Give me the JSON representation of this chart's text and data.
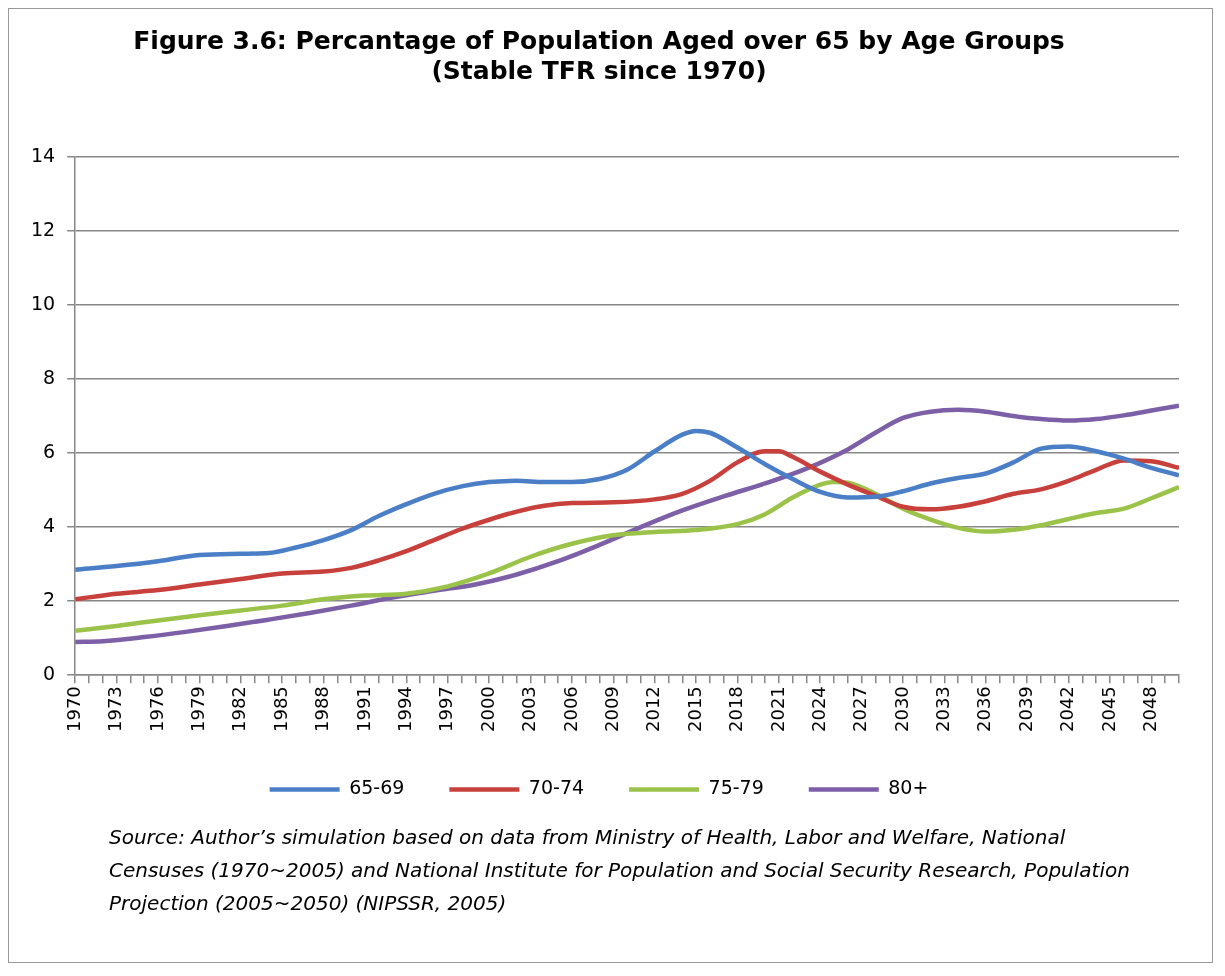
{
  "chart_data": {
    "type": "line",
    "title": [
      "Figure 3.6: Percantage of Population Aged over 65 by Age Groups",
      "(Stable TFR since 1970)"
    ],
    "xlim": [
      "1970",
      "2050"
    ],
    "ylim": [
      0,
      14
    ],
    "yticks": [
      0,
      2,
      4,
      6,
      8,
      10,
      12,
      14
    ],
    "xticks": [
      "1970",
      {
        "value": "1971",
        "label": null
      },
      {
        "value": "1972",
        "label": null
      },
      "1973",
      {
        "value": "1974",
        "label": null
      },
      {
        "value": "1975",
        "label": null
      },
      "1976",
      {
        "value": "1977",
        "label": null
      },
      {
        "value": "1978",
        "label": null
      },
      "1979",
      {
        "value": "1980",
        "label": null
      },
      {
        "value": "1981",
        "label": null
      },
      "1982",
      {
        "value": "1983",
        "label": null
      },
      {
        "value": "1984",
        "label": null
      },
      "1985",
      {
        "value": "1986",
        "label": null
      },
      {
        "value": "1987",
        "label": null
      },
      "1988",
      {
        "value": "1989",
        "label": null
      },
      {
        "value": "1990",
        "label": null
      },
      "1991",
      {
        "value": "1992",
        "label": null
      },
      {
        "value": "1993",
        "label": null
      },
      "1994",
      {
        "value": "1995",
        "label": null
      },
      {
        "value": "1996",
        "label": null
      },
      "1997",
      {
        "value": "1998",
        "label": null
      },
      {
        "value": "1999",
        "label": null
      },
      "2000",
      {
        "value": "2001",
        "label": null
      },
      {
        "value": "2002",
        "label": null
      },
      "2003",
      {
        "value": "2004",
        "label": null
      },
      {
        "value": "2005",
        "label": null
      },
      "2006",
      {
        "value": "2007",
        "label": null
      },
      {
        "value": "2008",
        "label": null
      },
      "2009",
      {
        "value": "2010",
        "label": null
      },
      {
        "value": "2011",
        "label": null
      },
      "2012",
      {
        "value": "2013",
        "label": null
      },
      {
        "value": "2014",
        "label": null
      },
      "2015",
      {
        "value": "2016",
        "label": null
      },
      {
        "value": "2017",
        "label": null
      },
      "2018",
      {
        "value": "2019",
        "label": null
      },
      {
        "value": "2020",
        "label": null
      },
      "2021",
      {
        "value": "2022",
        "label": null
      },
      {
        "value": "2023",
        "label": null
      },
      "2024",
      {
        "value": "2025",
        "label": null
      },
      {
        "value": "2026",
        "label": null
      },
      "2027",
      {
        "value": "2028",
        "label": null
      },
      {
        "value": "2029",
        "label": null
      },
      "2030",
      {
        "value": "2031",
        "label": null
      },
      {
        "value": "2032",
        "label": null
      },
      "2033",
      {
        "value": "2034",
        "label": null
      },
      {
        "value": "2035",
        "label": null
      },
      "2036",
      {
        "value": "2037",
        "label": null
      },
      {
        "value": "2038",
        "label": null
      },
      "2039",
      {
        "value": "2040",
        "label": null
      },
      {
        "value": "2041",
        "label": null
      },
      "2042",
      {
        "value": "2043",
        "label": null
      },
      {
        "value": "2044",
        "label": null
      },
      "2045",
      {
        "value": "2046",
        "label": null
      },
      {
        "value": "2047",
        "label": null
      },
      "2048",
      {
        "value": "2049",
        "label": null
      },
      {
        "value": "2050",
        "label": null
      }
    ],
    "grid": "y",
    "legend": "bottom",
    "marker": "none",
    "series": [
      {
        "name": "65-69",
        "color": "#4a7ec7",
        "x": [
          "1970",
          "1973",
          "1976",
          "1979",
          "1982",
          "1984",
          "1986",
          "1988",
          "1990",
          "1992",
          "1994",
          "1996",
          "1998",
          "2000",
          "2002",
          "2004",
          "2006",
          "2008",
          "2010",
          "2012",
          "2014",
          "2015",
          "2016",
          "2018",
          "2020",
          "2022",
          "2024",
          "2026",
          "2028",
          "2030",
          "2032",
          "2034",
          "2036",
          "2038",
          "2040",
          "2042",
          "2044",
          "2046",
          "2048",
          "2050"
        ],
        "values": [
          2.85,
          2.95,
          3.08,
          3.25,
          3.28,
          3.3,
          3.45,
          3.65,
          3.92,
          4.3,
          4.62,
          4.9,
          5.1,
          5.22,
          5.25,
          5.22,
          5.22,
          5.3,
          5.55,
          6.05,
          6.5,
          6.6,
          6.55,
          6.15,
          5.7,
          5.3,
          4.95,
          4.8,
          4.82,
          4.97,
          5.18,
          5.33,
          5.45,
          5.75,
          6.12,
          6.18,
          6.05,
          5.85,
          5.6,
          5.4
        ]
      },
      {
        "name": "70-74",
        "color": "#c8403b",
        "x": [
          "1970",
          "1973",
          "1976",
          "1979",
          "1982",
          "1985",
          "1988",
          "1990",
          "1992",
          "1994",
          "1996",
          "1998",
          "2000",
          "2002",
          "2004",
          "2006",
          "2009",
          "2012",
          "2014",
          "2016",
          "2018",
          "2020",
          "2021",
          "2022",
          "2024",
          "2026",
          "2028",
          "2030",
          "2032",
          "2034",
          "2036",
          "2038",
          "2040",
          "2042",
          "2044",
          "2046",
          "2048",
          "2050"
        ],
        "values": [
          2.05,
          2.2,
          2.3,
          2.45,
          2.6,
          2.75,
          2.8,
          2.9,
          3.1,
          3.35,
          3.65,
          3.95,
          4.2,
          4.42,
          4.58,
          4.65,
          4.67,
          4.75,
          4.9,
          5.25,
          5.75,
          6.05,
          6.05,
          5.9,
          5.5,
          5.15,
          4.85,
          4.55,
          4.48,
          4.55,
          4.7,
          4.9,
          5.02,
          5.25,
          5.55,
          5.8,
          5.78,
          5.6
        ]
      },
      {
        "name": "75-79",
        "color": "#9bc34a",
        "x": [
          "1970",
          "1973",
          "1976",
          "1979",
          "1982",
          "1985",
          "1988",
          "1991",
          "1994",
          "1997",
          "2000",
          "2003",
          "2006",
          "2009",
          "2012",
          "2015",
          "2018",
          "2020",
          "2022",
          "2024",
          "2025",
          "2026",
          "2028",
          "2030",
          "2032",
          "2034",
          "2036",
          "2038",
          "2040",
          "2042",
          "2044",
          "2046",
          "2048",
          "2050"
        ],
        "values": [
          1.2,
          1.33,
          1.48,
          1.62,
          1.75,
          1.88,
          2.05,
          2.15,
          2.2,
          2.4,
          2.75,
          3.2,
          3.55,
          3.78,
          3.87,
          3.92,
          4.08,
          4.35,
          4.8,
          5.15,
          5.22,
          5.2,
          4.9,
          4.5,
          4.2,
          3.98,
          3.88,
          3.93,
          4.05,
          4.22,
          4.38,
          4.5,
          4.78,
          5.08
        ]
      },
      {
        "name": "80+",
        "color": "#7d5fa8",
        "x": [
          "1970",
          "1972",
          "1975",
          "1978",
          "1981",
          "1984",
          "1987",
          "1990",
          "1993",
          "1996",
          "1999",
          "2002",
          "2005",
          "2008",
          "2011",
          "2014",
          "2017",
          "2020",
          "2023",
          "2026",
          "2028",
          "2030",
          "2032",
          "2034",
          "2036",
          "2038",
          "2040",
          "2042",
          "2044",
          "2046",
          "2048",
          "2050"
        ],
        "values": [
          0.9,
          0.92,
          1.03,
          1.17,
          1.33,
          1.5,
          1.68,
          1.88,
          2.1,
          2.28,
          2.45,
          2.72,
          3.08,
          3.52,
          4.0,
          4.45,
          4.83,
          5.18,
          5.58,
          6.1,
          6.55,
          6.95,
          7.12,
          7.17,
          7.12,
          7.0,
          6.92,
          6.88,
          6.92,
          7.02,
          7.15,
          7.28
        ]
      }
    ],
    "annotations": [
      "Source: Author’s simulation based on data from Ministry of Health, Labor and Welfare, National Censuses (1970~2005) and National Institute for Population and Social Security Research, Population Projection (2005~2050) (NIPSSR, 2005)"
    ]
  }
}
